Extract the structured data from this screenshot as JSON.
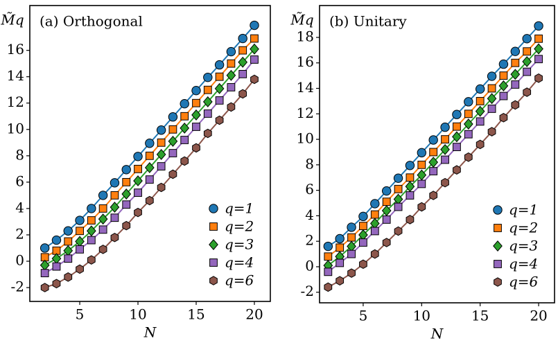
{
  "chart_data": [
    {
      "type": "line",
      "title": "(a) Orthogonal",
      "x_label": "N",
      "y_label": "M̃q",
      "x": [
        2,
        3,
        4,
        5,
        6,
        7,
        8,
        9,
        10,
        11,
        12,
        13,
        14,
        15,
        16,
        17,
        18,
        19,
        20
      ],
      "xlim": [
        0.71,
        21.37
      ],
      "ylim": [
        -3.05,
        19.4
      ],
      "xticks": [
        5,
        10,
        15,
        20
      ],
      "yticks": [
        -2,
        0,
        2,
        4,
        6,
        8,
        10,
        12,
        14,
        16
      ],
      "legend": "lower right",
      "series": [
        {
          "name": "q=1",
          "color": "#1f77b4",
          "marker": "circle",
          "values": [
            1.0,
            1.6,
            2.3,
            3.1,
            4.0,
            5.0,
            5.95,
            6.95,
            7.95,
            8.95,
            9.95,
            10.95,
            11.95,
            12.95,
            13.95,
            14.9,
            15.9,
            16.9,
            17.9
          ]
        },
        {
          "name": "q=2",
          "color": "#ff7f0e",
          "marker": "square",
          "values": [
            0.3,
            0.8,
            1.5,
            2.3,
            3.1,
            4.0,
            5.0,
            6.0,
            7.0,
            8.0,
            9.0,
            10.0,
            11.0,
            12.0,
            13.0,
            14.0,
            15.0,
            16.0,
            16.9
          ]
        },
        {
          "name": "q=3",
          "color": "#2ca02c",
          "marker": "diamond",
          "values": [
            -0.3,
            0.2,
            0.8,
            1.5,
            2.3,
            3.2,
            4.1,
            5.1,
            6.1,
            7.1,
            8.1,
            9.1,
            10.1,
            11.1,
            12.1,
            13.1,
            14.1,
            15.1,
            16.1
          ]
        },
        {
          "name": "q=4",
          "color": "#9467bd",
          "marker": "square",
          "values": [
            -0.9,
            -0.4,
            0.2,
            0.9,
            1.6,
            2.4,
            3.3,
            4.3,
            5.2,
            6.2,
            7.2,
            8.2,
            9.2,
            10.2,
            11.2,
            12.2,
            13.2,
            14.2,
            15.3
          ]
        },
        {
          "name": "q=6",
          "color": "#8c564b",
          "marker": "hexagon",
          "values": [
            -2.0,
            -1.7,
            -1.2,
            -0.6,
            0.1,
            0.9,
            1.8,
            2.7,
            3.7,
            4.6,
            5.6,
            6.6,
            7.6,
            8.6,
            9.7,
            10.7,
            11.7,
            12.7,
            13.8
          ]
        }
      ]
    },
    {
      "type": "line",
      "title": "(b) Unitary",
      "x_label": "N",
      "y_label": "M̃q",
      "x": [
        2,
        3,
        4,
        5,
        6,
        7,
        8,
        9,
        10,
        11,
        12,
        13,
        14,
        15,
        16,
        17,
        18,
        19,
        20
      ],
      "xlim": [
        1.27,
        21.36
      ],
      "ylim": [
        -2.83,
        20.5
      ],
      "xticks": [
        5,
        10,
        15,
        20
      ],
      "yticks": [
        -2,
        0,
        2,
        4,
        6,
        8,
        10,
        12,
        14,
        16,
        18
      ],
      "legend": "lower right",
      "series": [
        {
          "name": "q=1",
          "color": "#1f77b4",
          "marker": "circle",
          "values": [
            1.6,
            2.2,
            3.1,
            3.95,
            4.95,
            5.95,
            6.95,
            7.95,
            8.95,
            9.95,
            10.95,
            11.95,
            12.95,
            13.95,
            14.95,
            15.9,
            16.9,
            17.9,
            18.9
          ]
        },
        {
          "name": "q=2",
          "color": "#ff7f0e",
          "marker": "square",
          "values": [
            0.8,
            1.5,
            2.3,
            3.2,
            4.1,
            5.1,
            6.1,
            7.0,
            8.0,
            9.0,
            10.0,
            11.0,
            12.0,
            13.0,
            14.0,
            15.0,
            16.0,
            16.9,
            17.9
          ]
        },
        {
          "name": "q=3",
          "color": "#2ca02c",
          "marker": "diamond",
          "values": [
            0.1,
            0.8,
            1.6,
            2.5,
            3.4,
            4.4,
            5.3,
            6.3,
            7.2,
            8.2,
            9.2,
            10.2,
            11.2,
            12.2,
            13.2,
            14.2,
            15.1,
            16.1,
            17.1
          ]
        },
        {
          "name": "q=4",
          "color": "#9467bd",
          "marker": "square",
          "values": [
            -0.4,
            0.3,
            1.0,
            1.9,
            2.8,
            3.7,
            4.7,
            5.6,
            6.5,
            7.5,
            8.4,
            9.4,
            10.4,
            11.4,
            12.4,
            13.4,
            14.3,
            15.3,
            16.3
          ]
        },
        {
          "name": "q=6",
          "color": "#8c564b",
          "marker": "hexagon",
          "values": [
            -1.6,
            -1.1,
            -0.5,
            0.2,
            1.0,
            1.9,
            2.8,
            3.7,
            4.7,
            5.6,
            6.6,
            7.6,
            8.6,
            9.6,
            10.6,
            11.7,
            12.7,
            13.7,
            14.8
          ]
        }
      ]
    }
  ]
}
